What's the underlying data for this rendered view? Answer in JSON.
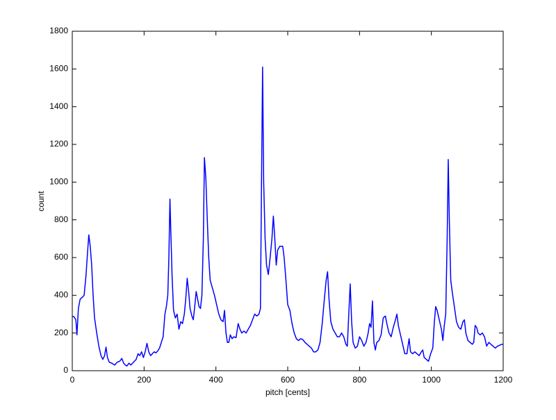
{
  "chart_data": {
    "type": "line",
    "xlabel": "pitch [cents]",
    "ylabel": "count",
    "x": [
      0,
      5,
      10,
      13,
      17,
      22,
      28,
      33,
      38,
      43,
      46,
      50,
      54,
      58,
      62,
      68,
      74,
      80,
      85,
      90,
      94,
      98,
      103,
      110,
      118,
      125,
      132,
      138,
      143,
      148,
      152,
      158,
      163,
      168,
      173,
      178,
      183,
      188,
      193,
      198,
      203,
      208,
      213,
      218,
      223,
      228,
      233,
      238,
      243,
      248,
      253,
      258,
      262,
      266,
      269,
      272,
      275,
      278,
      282,
      287,
      292,
      297,
      302,
      307,
      312,
      316,
      320,
      324,
      328,
      333,
      337,
      341,
      345,
      349,
      353,
      357,
      361,
      365,
      368,
      372,
      376,
      380,
      384,
      390,
      396,
      402,
      408,
      414,
      420,
      424,
      428,
      432,
      436,
      440,
      445,
      450,
      456,
      462,
      467,
      472,
      478,
      484,
      490,
      496,
      502,
      508,
      514,
      520,
      524,
      527,
      530,
      533,
      537,
      541,
      546,
      551,
      556,
      560,
      564,
      568,
      572,
      578,
      586,
      590,
      595,
      600,
      606,
      612,
      618,
      624,
      630,
      636,
      642,
      648,
      654,
      660,
      666,
      672,
      678,
      684,
      690,
      696,
      702,
      707,
      711,
      715,
      720,
      726,
      732,
      738,
      744,
      750,
      756,
      762,
      766,
      770,
      774,
      778,
      782,
      788,
      794,
      800,
      806,
      812,
      818,
      824,
      828,
      832,
      836,
      840,
      844,
      848,
      854,
      860,
      866,
      872,
      876,
      882,
      888,
      894,
      900,
      904,
      908,
      914,
      920,
      926,
      932,
      938,
      942,
      948,
      954,
      960,
      966,
      972,
      976,
      980,
      986,
      992,
      998,
      1004,
      1008,
      1012,
      1016,
      1022,
      1028,
      1032,
      1036,
      1040,
      1044,
      1047,
      1050,
      1054,
      1058,
      1064,
      1070,
      1076,
      1082,
      1088,
      1092,
      1096,
      1102,
      1108,
      1114,
      1118,
      1122,
      1126,
      1130,
      1136,
      1142,
      1148,
      1154,
      1160,
      1166,
      1172,
      1178,
      1184,
      1190,
      1196,
      1200
    ],
    "series": [
      {
        "color": "#0000ff",
        "values": [
          290,
          285,
          270,
          190,
          330,
          380,
          390,
          400,
          500,
          640,
          720,
          660,
          560,
          400,
          280,
          200,
          130,
          80,
          60,
          80,
          125,
          70,
          45,
          40,
          30,
          45,
          50,
          65,
          40,
          30,
          25,
          40,
          30,
          40,
          50,
          60,
          90,
          80,
          100,
          70,
          100,
          145,
          100,
          80,
          90,
          100,
          95,
          105,
          120,
          150,
          180,
          300,
          340,
          400,
          600,
          910,
          700,
          500,
          320,
          280,
          300,
          220,
          260,
          250,
          300,
          380,
          490,
          420,
          330,
          290,
          270,
          340,
          420,
          380,
          340,
          330,
          400,
          700,
          1130,
          1020,
          800,
          600,
          480,
          440,
          400,
          350,
          300,
          270,
          260,
          320,
          200,
          150,
          150,
          190,
          170,
          180,
          175,
          250,
          220,
          200,
          210,
          200,
          220,
          240,
          270,
          300,
          290,
          300,
          330,
          1000,
          1610,
          1000,
          700,
          560,
          510,
          600,
          700,
          820,
          700,
          560,
          640,
          660,
          660,
          600,
          480,
          350,
          320,
          250,
          200,
          170,
          160,
          170,
          165,
          150,
          140,
          130,
          120,
          100,
          100,
          110,
          150,
          250,
          380,
          480,
          525,
          380,
          260,
          220,
          200,
          180,
          180,
          200,
          180,
          140,
          130,
          300,
          460,
          260,
          150,
          120,
          130,
          180,
          160,
          130,
          150,
          200,
          250,
          230,
          370,
          150,
          110,
          150,
          160,
          190,
          280,
          290,
          250,
          200,
          180,
          230,
          270,
          300,
          240,
          190,
          140,
          90,
          90,
          170,
          100,
          90,
          100,
          90,
          80,
          100,
          110,
          70,
          60,
          50,
          90,
          120,
          250,
          340,
          320,
          270,
          220,
          160,
          240,
          300,
          700,
          1120,
          800,
          480,
          420,
          340,
          260,
          230,
          220,
          260,
          270,
          200,
          160,
          150,
          140,
          150,
          240,
          230,
          200,
          190,
          200,
          180,
          130,
          150,
          140,
          130,
          120,
          130,
          135,
          140,
          140
        ]
      }
    ],
    "xlim": [
      0,
      1200
    ],
    "xticks": [
      0,
      200,
      400,
      600,
      800,
      1000,
      1200
    ],
    "ylim": [
      0,
      1800
    ],
    "yticks": [
      0,
      200,
      400,
      600,
      800,
      1000,
      1200,
      1400,
      1600,
      1800
    ]
  }
}
